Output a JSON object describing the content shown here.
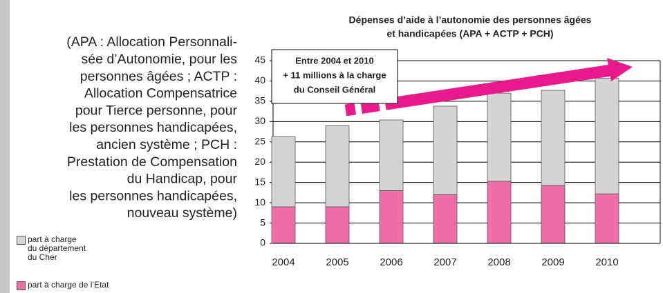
{
  "chart_data": {
    "type": "stacked_bar",
    "title": [
      "Dépenses d’aide à l’autonomie des personnes âgées",
      "et handicapées (APA + ACTP + PCH)"
    ],
    "note": [
      "(APA : Allocation Personnali-",
      "sée d’Autonomie, pour les",
      "personnes âgées ; ACTP :",
      "Allocation Compensatrice",
      "pour Tierce personne, pour",
      "les personnes handicapées,",
      "ancien système ; PCH :",
      "Prestation de Compensation",
      "du Handicap, pour",
      "les personnes handicapées,",
      "nouveau système)"
    ],
    "annotation": [
      "Entre 2004 et 2010",
      "+ 11 millions à la charge",
      "du Conseil Général"
    ],
    "categories": [
      "2004",
      "2005",
      "2006",
      "2007",
      "2008",
      "2009",
      "2010"
    ],
    "series": [
      {
        "name": "part à charge\ndu département\ndu Cher",
        "color": "#d4d4d4",
        "values": [
          17.3,
          20,
          17.4,
          21.8,
          21.7,
          23.4,
          28.5
        ]
      },
      {
        "name": "part à charge de l’Etat",
        "color": "#ee6fa8",
        "values": [
          9,
          9,
          13,
          12,
          15.3,
          14.3,
          12.2
        ]
      }
    ],
    "ylim": [
      0,
      45
    ],
    "yticks": [
      0,
      5,
      10,
      15,
      20,
      25,
      30,
      35,
      40,
      45
    ],
    "grid": true
  }
}
